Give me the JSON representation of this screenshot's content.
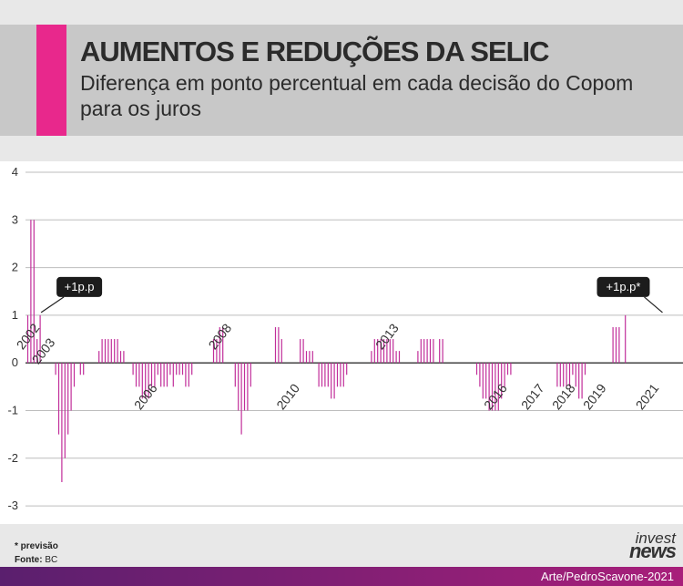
{
  "header": {
    "title": "AUMENTOS E REDUÇÕES DA SELIC",
    "subtitle": "Diferença em ponto percentual em cada decisão do Copom para os juros"
  },
  "footer": {
    "note_label": "* previsão",
    "source_label": "Fonte:",
    "source_value": "BC",
    "logo_top": "invest",
    "logo_bottom": "news",
    "credit": "Arte/PedroScavone-2021"
  },
  "colors": {
    "accent": "#e8288c",
    "bar": "#c12d9a",
    "grid": "#bdbdbd"
  },
  "chart_data": {
    "type": "bar",
    "title": "AUMENTOS E REDUÇÕES DA SELIC",
    "subtitle": "Diferença em ponto percentual em cada decisão do Copom para os juros",
    "ylim": [
      -3,
      4
    ],
    "y_ticks": [
      4,
      3,
      2,
      1,
      0,
      -1,
      -2,
      -3
    ],
    "grid": true,
    "x_labels": [
      {
        "label": "2002",
        "index": 0
      },
      {
        "label": "2003",
        "index": 5
      },
      {
        "label": "2006",
        "index": 38
      },
      {
        "label": "2008",
        "index": 62
      },
      {
        "label": "2010",
        "index": 84
      },
      {
        "label": "2013",
        "index": 116
      },
      {
        "label": "2016",
        "index": 151
      },
      {
        "label": "2017",
        "index": 163
      },
      {
        "label": "2018",
        "index": 173
      },
      {
        "label": "2019",
        "index": 183
      },
      {
        "label": "2021",
        "index": 200
      }
    ],
    "annotations": [
      {
        "text": "+1p.p",
        "index": 4,
        "value": 1
      },
      {
        "text": "+1p.p*",
        "index": 205,
        "value": 1
      }
    ],
    "values": [
      1,
      3,
      3,
      0.5,
      1,
      0,
      0,
      0,
      0,
      -0.25,
      -1.5,
      -2.5,
      -2,
      -1.5,
      -1,
      -0.5,
      0,
      -0.25,
      -0.25,
      0,
      0,
      0,
      0,
      0.25,
      0.5,
      0.5,
      0.5,
      0.5,
      0.5,
      0.5,
      0.25,
      0.25,
      0,
      0,
      -0.25,
      -0.5,
      -0.5,
      -0.75,
      -0.75,
      -0.75,
      -0.5,
      -0.5,
      -0.25,
      -0.5,
      -0.5,
      -0.5,
      -0.25,
      -0.5,
      -0.25,
      -0.25,
      -0.25,
      -0.5,
      -0.5,
      -0.25,
      0,
      0,
      0,
      0,
      0,
      0,
      0.5,
      0.5,
      0.75,
      0.75,
      0,
      0,
      0,
      -0.5,
      -1,
      -1.5,
      -1,
      -1,
      -0.5,
      0,
      0,
      0,
      0,
      0,
      0,
      0,
      0.75,
      0.75,
      0.5,
      0,
      0,
      0,
      0,
      0,
      0.5,
      0.5,
      0.25,
      0.25,
      0.25,
      0,
      -0.5,
      -0.5,
      -0.5,
      -0.5,
      -0.75,
      -0.75,
      -0.5,
      -0.5,
      -0.5,
      -0.25,
      0,
      0,
      0,
      0,
      0,
      0,
      0,
      0.25,
      0.5,
      0.5,
      0.5,
      0.5,
      0.5,
      0.5,
      0.5,
      0.25,
      0.25,
      0,
      0,
      0,
      0,
      0,
      0.25,
      0.5,
      0.5,
      0.5,
      0.5,
      0.5,
      0,
      0.5,
      0.5,
      0,
      0,
      0,
      0,
      0,
      0,
      0,
      0,
      0,
      0,
      -0.25,
      -0.5,
      -0.75,
      -0.75,
      -1,
      -1,
      -1,
      -1,
      -0.75,
      -0.5,
      -0.25,
      -0.25,
      0,
      0,
      0,
      0,
      0,
      0,
      0,
      0,
      0,
      0,
      0,
      0,
      0,
      0,
      -0.5,
      -0.5,
      -0.5,
      -0.5,
      -0.5,
      -0.25,
      -0.5,
      -0.75,
      -0.75,
      -0.25,
      0,
      0,
      0,
      0,
      0,
      0,
      0,
      0,
      0.75,
      0.75,
      0.75,
      0,
      1
    ]
  }
}
